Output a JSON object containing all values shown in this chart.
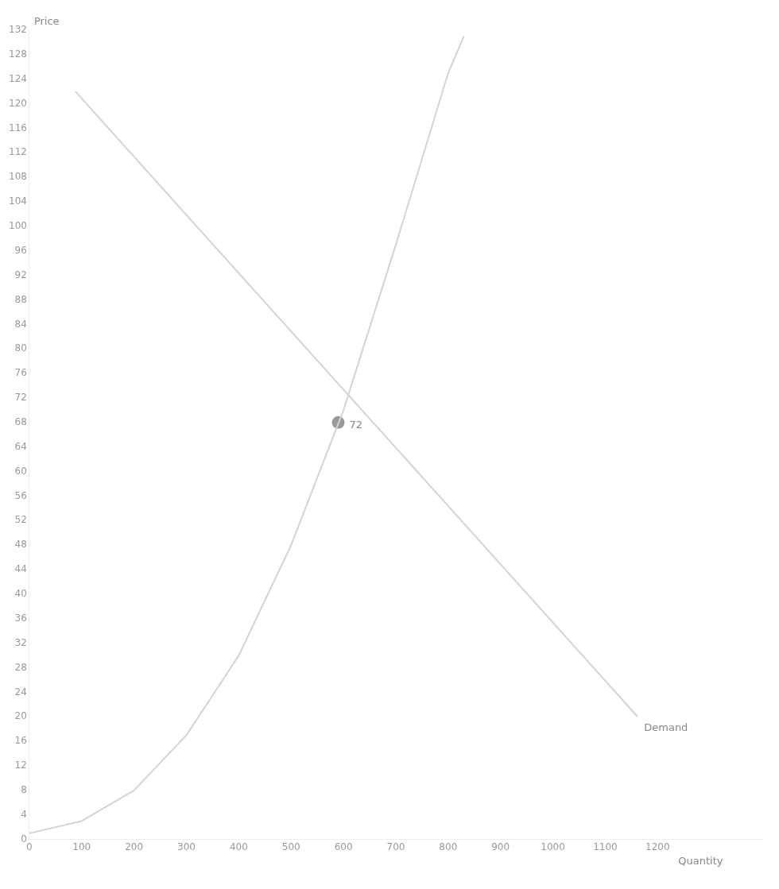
{
  "chart_data": {
    "type": "line",
    "ylabel": "Price",
    "xlabel": "Quantity",
    "xlim": [
      0,
      1400
    ],
    "xticks": [
      0,
      100,
      200,
      300,
      400,
      500,
      600,
      700,
      800,
      900,
      1000,
      1100,
      1200
    ],
    "ylim": [
      0,
      132
    ],
    "yticks": [
      0,
      4,
      8,
      12,
      16,
      20,
      24,
      28,
      32,
      36,
      40,
      44,
      48,
      52,
      56,
      60,
      64,
      68,
      72,
      76,
      80,
      84,
      88,
      92,
      96,
      100,
      104,
      108,
      112,
      116,
      120,
      124,
      128,
      132
    ],
    "grid": false,
    "legend": false,
    "series": [
      {
        "color": "#d4d4d4",
        "x": [
          0,
          100,
          200,
          300,
          400,
          500,
          600,
          700,
          800,
          830
        ],
        "values": [
          1,
          3,
          8,
          17,
          30,
          48,
          70,
          97,
          125,
          131
        ]
      },
      {
        "name": "Demand",
        "color": "#d4d4d4",
        "x": [
          88,
          1162
        ],
        "values": [
          122,
          20
        ]
      },
      {
        "type": "scatter",
        "marker": "circle",
        "color": "#9a9a9a",
        "x": [
          590
        ],
        "values": [
          68
        ]
      }
    ],
    "annotations": [
      {
        "text": "72",
        "x": 590,
        "y": 68
      }
    ]
  }
}
